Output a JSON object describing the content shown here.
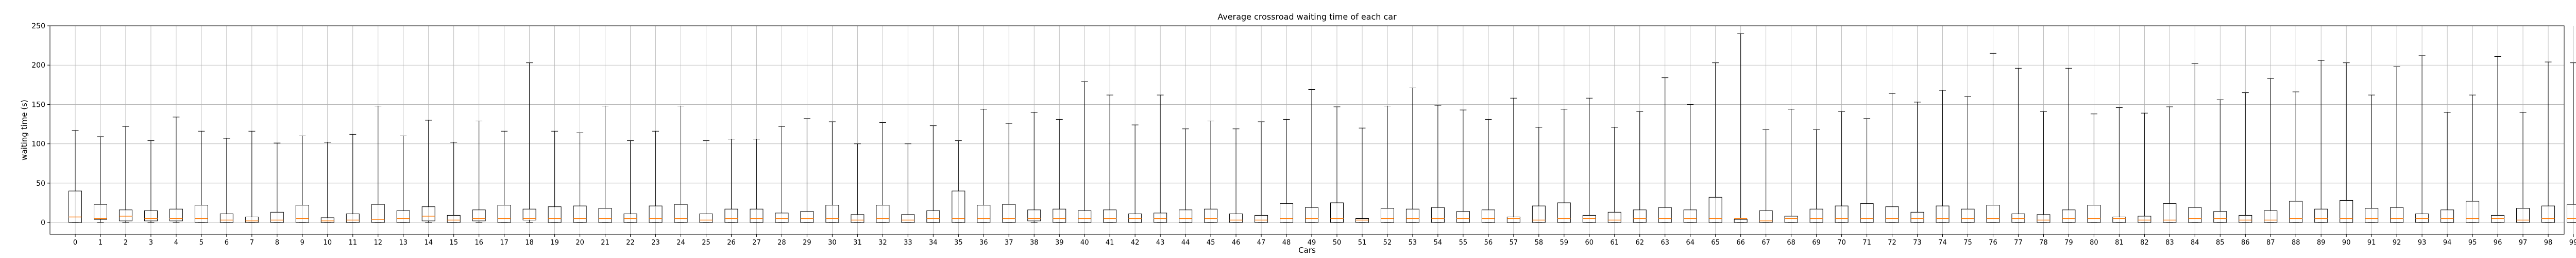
{
  "chart_data": {
    "type": "box",
    "title": "Average crossroad waiting time of each car",
    "xlabel": "Cars",
    "ylabel": "waiting time (s)",
    "ylim": [
      -15,
      250
    ],
    "yticks": [
      0,
      50,
      100,
      150,
      200,
      250
    ],
    "grid": true,
    "categories": [
      "0",
      "1",
      "2",
      "3",
      "4",
      "5",
      "6",
      "7",
      "8",
      "9",
      "10",
      "11",
      "12",
      "13",
      "14",
      "15",
      "16",
      "17",
      "18",
      "19",
      "20",
      "21",
      "22",
      "23",
      "24",
      "25",
      "26",
      "27",
      "28",
      "29",
      "30",
      "31",
      "32",
      "33",
      "34",
      "35",
      "36",
      "37",
      "38",
      "39",
      "40",
      "41",
      "42",
      "43",
      "44",
      "45",
      "46",
      "47",
      "48",
      "49",
      "50",
      "51",
      "52",
      "53",
      "54",
      "55",
      "56",
      "57",
      "58",
      "59",
      "60",
      "61",
      "62",
      "63",
      "64",
      "65",
      "66",
      "67",
      "68",
      "69",
      "70",
      "71",
      "72",
      "73",
      "74",
      "75",
      "76",
      "77",
      "78",
      "79",
      "80",
      "81",
      "82",
      "83",
      "84",
      "85",
      "86",
      "87",
      "88",
      "89",
      "90",
      "91",
      "92",
      "93",
      "94",
      "95",
      "96",
      "97",
      "98",
      "99"
    ],
    "q1": [
      0,
      4,
      2,
      2,
      2,
      0,
      0,
      0,
      0,
      0,
      0,
      0,
      0,
      0,
      2,
      0,
      2,
      0,
      3,
      0,
      0,
      0,
      0,
      0,
      0,
      0,
      0,
      0,
      0,
      0,
      0,
      0,
      0,
      0,
      0,
      0,
      0,
      0,
      2,
      0,
      0,
      0,
      0,
      0,
      0,
      0,
      0,
      0,
      0,
      0,
      0,
      0,
      0,
      0,
      0,
      0,
      0,
      0,
      0,
      0,
      0,
      0,
      0,
      0,
      0,
      0,
      0,
      0,
      0,
      0,
      0,
      0,
      0,
      0,
      0,
      0,
      0,
      0,
      0,
      0,
      0,
      0,
      0,
      0,
      0,
      0,
      0,
      0,
      0,
      0,
      0,
      0,
      0,
      0,
      0,
      0,
      0,
      0,
      0,
      0
    ],
    "median": [
      7,
      5,
      8,
      5,
      5,
      5,
      3,
      2,
      3,
      5,
      2,
      3,
      4,
      5,
      8,
      3,
      5,
      5,
      5,
      5,
      5,
      5,
      5,
      5,
      5,
      3,
      5,
      5,
      5,
      5,
      5,
      3,
      5,
      3,
      5,
      5,
      5,
      5,
      5,
      5,
      5,
      5,
      5,
      5,
      5,
      5,
      3,
      3,
      5,
      5,
      5,
      3,
      5,
      5,
      5,
      5,
      5,
      5,
      3,
      5,
      5,
      3,
      5,
      5,
      5,
      5,
      5,
      2,
      5,
      5,
      5,
      5,
      5,
      5,
      5,
      5,
      5,
      5,
      3,
      5,
      5,
      5,
      3,
      3,
      5,
      5,
      3,
      3,
      5,
      5,
      5,
      5,
      5,
      5,
      5,
      5,
      5,
      3,
      5,
      5
    ],
    "q3": [
      40,
      23,
      16,
      15,
      17,
      22,
      11,
      7,
      13,
      22,
      6,
      11,
      23,
      15,
      20,
      9,
      16,
      22,
      17,
      20,
      21,
      18,
      11,
      21,
      23,
      11,
      17,
      17,
      12,
      14,
      22,
      10,
      22,
      10,
      15,
      40,
      22,
      23,
      16,
      17,
      15,
      16,
      11,
      12,
      16,
      17,
      11,
      9,
      24,
      19,
      25,
      5,
      18,
      17,
      19,
      14,
      16,
      7,
      21,
      25,
      9,
      13,
      16,
      19,
      16,
      32,
      4,
      15,
      8,
      17,
      21,
      24,
      20,
      13,
      21,
      17,
      22,
      11,
      10,
      16,
      22,
      7,
      8,
      24,
      19,
      14,
      9,
      15,
      27,
      17,
      28,
      18,
      19,
      11,
      16,
      27,
      9,
      18,
      21,
      23
    ],
    "low": [
      0,
      0,
      0,
      0,
      0,
      0,
      0,
      0,
      0,
      0,
      0,
      0,
      0,
      0,
      0,
      0,
      0,
      0,
      0,
      0,
      0,
      0,
      0,
      0,
      0,
      0,
      0,
      0,
      0,
      0,
      0,
      0,
      0,
      0,
      0,
      0,
      0,
      0,
      0,
      0,
      0,
      0,
      0,
      0,
      0,
      0,
      0,
      0,
      0,
      0,
      0,
      0,
      0,
      0,
      0,
      0,
      0,
      0,
      0,
      0,
      0,
      0,
      0,
      0,
      0,
      0,
      0,
      0,
      0,
      0,
      0,
      0,
      0,
      0,
      0,
      0,
      0,
      0,
      0,
      0,
      0,
      0,
      0,
      0,
      0,
      0,
      0,
      0,
      0,
      0,
      0,
      0,
      0,
      0,
      0,
      0,
      0,
      0,
      0,
      0
    ],
    "high": [
      117,
      109,
      122,
      104,
      134,
      116,
      107,
      116,
      101,
      110,
      102,
      112,
      148,
      110,
      130,
      102,
      129,
      116,
      203,
      116,
      114,
      148,
      104,
      116,
      148,
      104,
      106,
      106,
      122,
      132,
      128,
      100,
      127,
      100,
      123,
      104,
      144,
      126,
      140,
      131,
      179,
      162,
      124,
      162,
      119,
      129,
      119,
      128,
      131,
      169,
      147,
      120,
      148,
      171,
      149,
      143,
      131,
      158,
      121,
      144,
      158,
      121,
      141,
      184,
      150,
      203,
      240,
      118,
      144,
      118,
      141,
      132,
      164,
      153,
      168,
      160,
      215,
      196,
      141,
      196,
      138,
      146,
      139,
      147,
      202,
      156,
      165,
      183,
      166,
      206,
      203,
      162,
      198,
      212,
      140,
      162,
      211,
      140,
      204,
      203
    ]
  }
}
